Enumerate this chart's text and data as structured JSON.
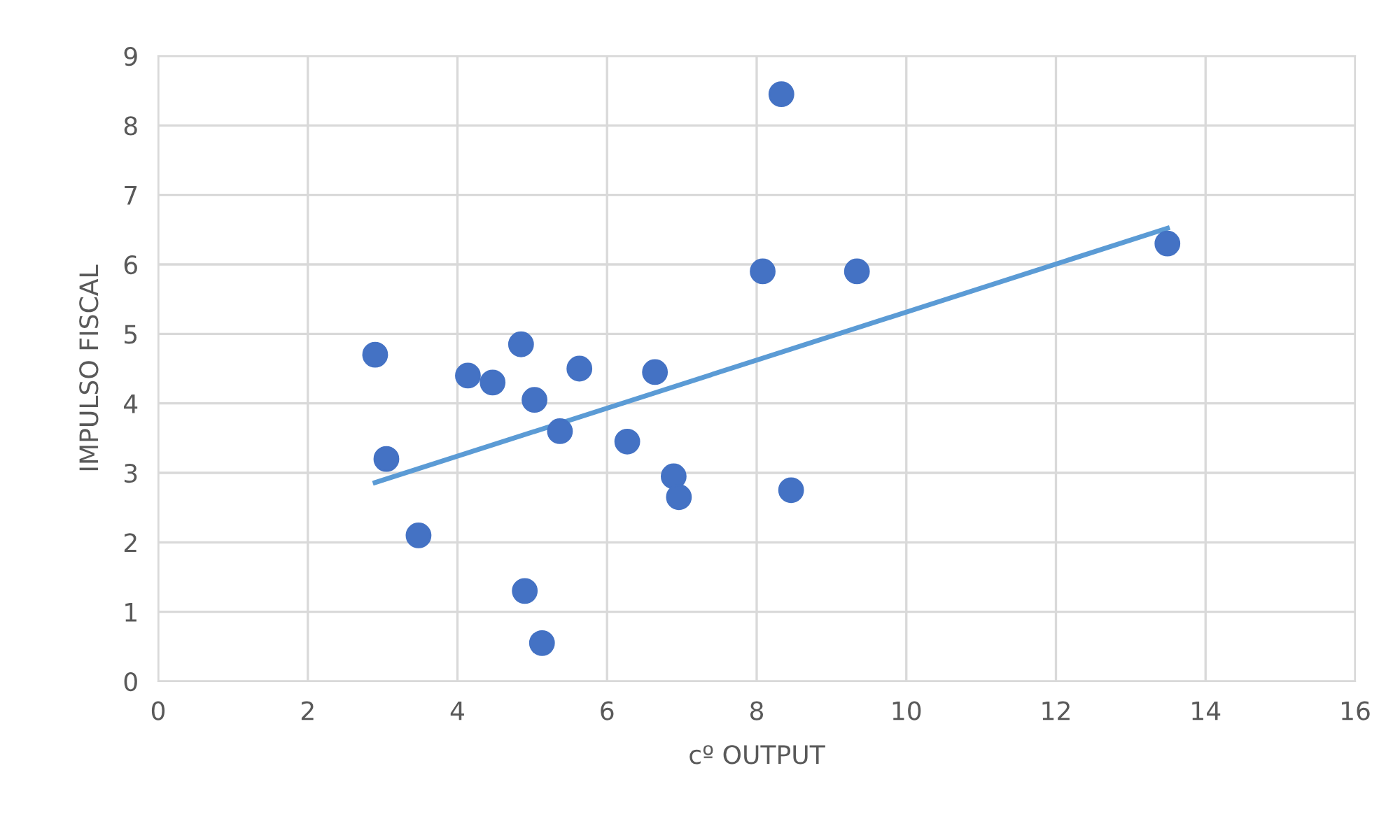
{
  "chart_data": {
    "type": "scatter",
    "xlabel": "cº OUTPUT",
    "ylabel": "IMPULSO FISCAL",
    "xlim": [
      0,
      16
    ],
    "xticks": [
      0,
      2,
      4,
      6,
      8,
      10,
      12,
      14,
      16
    ],
    "ylim": [
      0,
      9
    ],
    "yticks": [
      0,
      1,
      2,
      3,
      4,
      5,
      6,
      7,
      8,
      9
    ],
    "grid": true,
    "series": [
      {
        "marker": "circle",
        "color": "#4472c4",
        "x": [
          2.9,
          3.05,
          3.48,
          4.14,
          4.47,
          4.85,
          5.03,
          4.9,
          5.13,
          5.37,
          5.63,
          6.27,
          6.64,
          6.89,
          6.96,
          8.08,
          8.33,
          8.46,
          9.34,
          13.49
        ],
        "values": [
          4.7,
          3.2,
          2.1,
          4.4,
          4.3,
          4.85,
          4.05,
          1.3,
          0.55,
          3.6,
          4.5,
          3.45,
          4.45,
          2.95,
          2.65,
          5.9,
          8.45,
          2.75,
          5.9,
          6.3
        ]
      },
      {
        "type": "line",
        "marker": "none",
        "color": "#5b9bd5",
        "x": [
          2.9,
          13.49
        ],
        "values": [
          2.86,
          6.52
        ]
      }
    ]
  }
}
